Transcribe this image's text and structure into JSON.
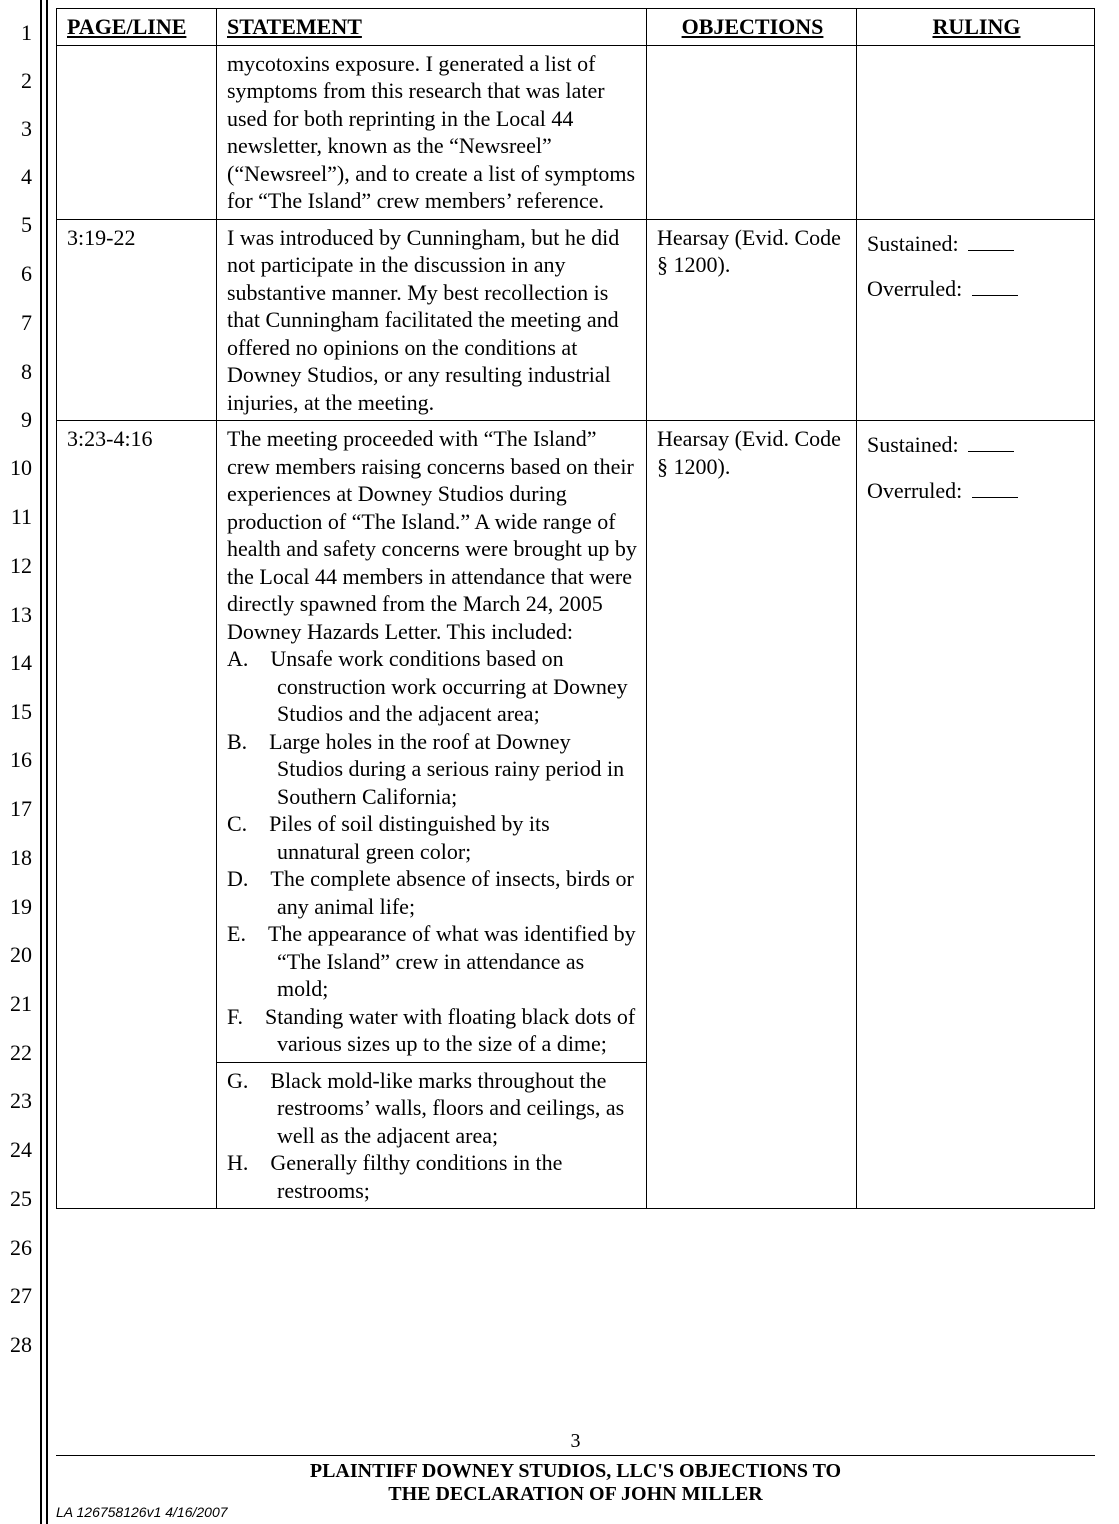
{
  "lineNumbers": {
    "count": 28,
    "positions": [
      22,
      70,
      118,
      166,
      214,
      263,
      312,
      361,
      409,
      457,
      506,
      555,
      604,
      652,
      701,
      749,
      798,
      847,
      896,
      944,
      993,
      1042,
      1090,
      1139,
      1188,
      1237,
      1285,
      1334
    ]
  },
  "headers": {
    "pageLine": "PAGE/LINE",
    "statement": "STATEMENT",
    "objections": "OBJECTIONS",
    "ruling": "RULING"
  },
  "rows": [
    {
      "pageLine": "",
      "statement": "mycotoxins exposure. I generated a list of symptoms from this research that was later used for both reprinting in the Local 44 newsletter, known as the “Newsreel” (“Newsreel”), and to create a list of symptoms for “The Island” crew members’ reference.",
      "objection": "",
      "ruling": {
        "sustained": "",
        "overruled": ""
      },
      "showRuling": false
    },
    {
      "pageLine": "3:19-22",
      "statement": "I was introduced by Cunningham, but he did not participate in the discussion in any substantive manner. My best recollection is that Cunningham facilitated the meeting and offered no opinions on the conditions at Downey Studios, or any resulting industrial injuries, at the meeting.",
      "objection": "Hearsay (Evid. Code § 1200).",
      "ruling": {
        "sustained": "Sustained:",
        "overruled": "Overruled:"
      },
      "showRuling": true
    },
    {
      "pageLine": "3:23-4:16",
      "statementIntro": "The meeting proceeded with “The Island” crew members raising concerns based on their experiences at Downey Studios during production of “The Island.”  A wide range of health and safety concerns were brought up by the Local 44 members in attendance that were directly spawned from the March 24, 2005 Downey Hazards Letter. This included:",
      "statementList": [
        "A. Unsafe work conditions based on construction work occurring at Downey Studios and the adjacent area;",
        "B. Large holes in the roof at Downey Studios during a serious rainy period in Southern California;",
        "C. Piles of soil distinguished by its unnatural green color;",
        "D. The complete absence of insects, birds or any animal life;",
        "E. The appearance of what was identified by “The Island” crew in attendance as mold;",
        "F. Standing water with floating black dots of various sizes up to the size of a dime;"
      ],
      "statementListCont": [
        "G. Black mold-like marks throughout the restrooms’ walls, floors and ceilings, as well as the adjacent area;",
        "H. Generally filthy conditions in the restrooms;"
      ],
      "objection": "Hearsay (Evid. Code § 1200).",
      "ruling": {
        "sustained": "Sustained:",
        "overruled": "Overruled:"
      },
      "showRuling": true
    }
  ],
  "footer": {
    "pageNumber": "3",
    "title1": "PLAINTIFF DOWNEY STUDIOS, LLC'S OBJECTIONS TO",
    "title2": "THE DECLARATION OF JOHN MILLER",
    "docId": "LA 126758126v1 4/16/2007"
  }
}
